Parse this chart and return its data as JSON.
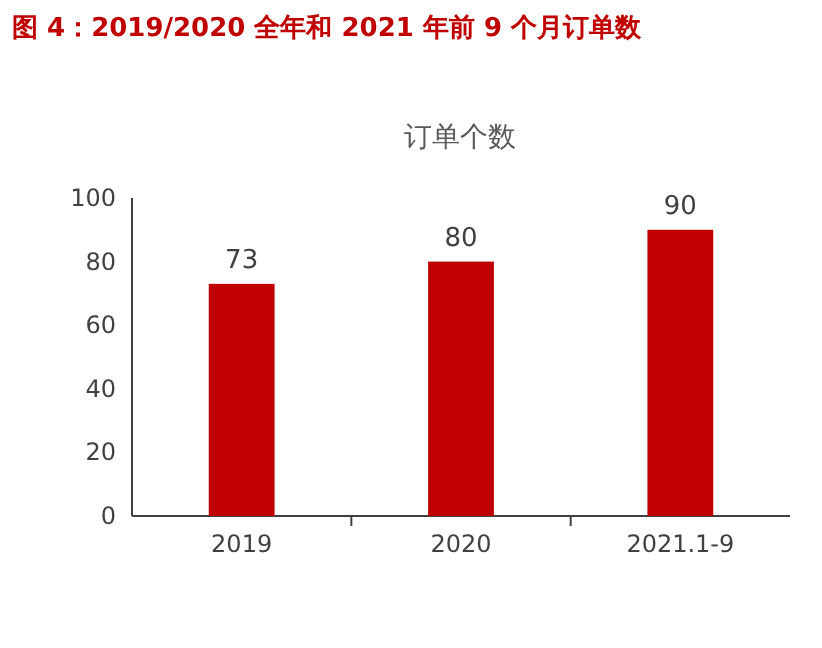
{
  "chart_data": {
    "type": "bar",
    "title": "图 4：2019/2020 全年和 2021 年前 9 个月订单数",
    "subtitle": "订单个数",
    "categories": [
      "2019",
      "2020",
      "2021.1-9"
    ],
    "values": [
      73,
      80,
      90
    ],
    "color": "#c00000",
    "ylim": [
      0,
      100
    ],
    "yticks": [
      0,
      20,
      40,
      60,
      80,
      100
    ],
    "data_labels": true
  }
}
